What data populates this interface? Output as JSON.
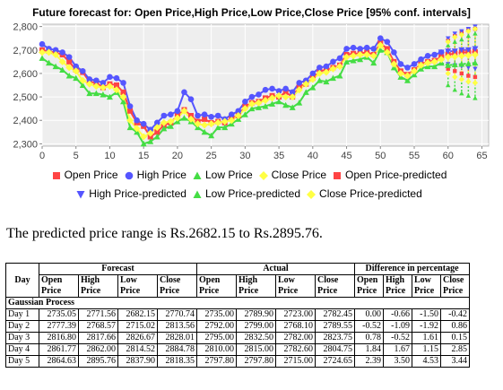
{
  "chart_data": {
    "type": "line",
    "title": "Future forecast for: Open Price,High Price,Low Price,Close Price [95% conf. intervals]",
    "xlim": [
      0,
      66
    ],
    "ylim": [
      2290,
      2810
    ],
    "xticks": [
      0,
      5,
      10,
      15,
      20,
      25,
      30,
      35,
      40,
      45,
      50,
      55,
      60,
      65
    ],
    "yticks": [
      2300,
      2400,
      2500,
      2600,
      2700,
      2800
    ],
    "ytick_labels": [
      "2,300",
      "2,400",
      "2,500",
      "2,600",
      "2,700",
      "2,800"
    ],
    "grid": true,
    "legend": "bottom",
    "series": [
      {
        "name": "Open Price",
        "color": "#ff4444",
        "marker": "square",
        "x": [
          0,
          1,
          2,
          3,
          4,
          5,
          6,
          7,
          8,
          9,
          10,
          11,
          12,
          13,
          14,
          15,
          16,
          17,
          18,
          19,
          20,
          21,
          22,
          23,
          24,
          25,
          26,
          27,
          28,
          29,
          30,
          31,
          32,
          33,
          34,
          35,
          36,
          37,
          38,
          39,
          40,
          41,
          42,
          43,
          44,
          45,
          46,
          47,
          48,
          49,
          50,
          51,
          52,
          53,
          54,
          55,
          56,
          57,
          58,
          59
        ],
        "y": [
          2700,
          2695,
          2688,
          2680,
          2650,
          2615,
          2605,
          2565,
          2560,
          2540,
          2555,
          2550,
          2520,
          2440,
          2390,
          2375,
          2330,
          2350,
          2380,
          2390,
          2420,
          2445,
          2420,
          2395,
          2405,
          2390,
          2395,
          2390,
          2410,
          2420,
          2460,
          2475,
          2480,
          2495,
          2505,
          2500,
          2520,
          2500,
          2545,
          2555,
          2580,
          2610,
          2615,
          2625,
          2635,
          2680,
          2685,
          2685,
          2690,
          2680,
          2730,
          2705,
          2650,
          2610,
          2595,
          2615,
          2640,
          2650,
          2655,
          2670
        ]
      },
      {
        "name": "High Price",
        "color": "#5555ff",
        "marker": "circle",
        "x": [
          0,
          1,
          2,
          3,
          4,
          5,
          6,
          7,
          8,
          9,
          10,
          11,
          12,
          13,
          14,
          15,
          16,
          17,
          18,
          19,
          20,
          21,
          22,
          23,
          24,
          25,
          26,
          27,
          28,
          29,
          30,
          31,
          32,
          33,
          34,
          35,
          36,
          37,
          38,
          39,
          40,
          41,
          42,
          43,
          44,
          45,
          46,
          47,
          48,
          49,
          50,
          51,
          52,
          53,
          54,
          55,
          56,
          57,
          58,
          59
        ],
        "y": [
          2725,
          2705,
          2700,
          2690,
          2670,
          2630,
          2610,
          2575,
          2570,
          2560,
          2585,
          2580,
          2560,
          2460,
          2400,
          2385,
          2360,
          2390,
          2420,
          2425,
          2440,
          2520,
          2490,
          2420,
          2425,
          2415,
          2420,
          2405,
          2425,
          2440,
          2480,
          2500,
          2510,
          2530,
          2535,
          2525,
          2535,
          2520,
          2560,
          2570,
          2600,
          2625,
          2630,
          2650,
          2665,
          2705,
          2710,
          2705,
          2710,
          2705,
          2750,
          2735,
          2690,
          2640,
          2625,
          2640,
          2660,
          2675,
          2680,
          2690
        ]
      },
      {
        "name": "Low Price",
        "color": "#44dd44",
        "marker": "triangle-up",
        "x": [
          0,
          1,
          2,
          3,
          4,
          5,
          6,
          7,
          8,
          9,
          10,
          11,
          12,
          13,
          14,
          15,
          16,
          17,
          18,
          19,
          20,
          21,
          22,
          23,
          24,
          25,
          26,
          27,
          28,
          29,
          30,
          31,
          32,
          33,
          34,
          35,
          36,
          37,
          38,
          39,
          40,
          41,
          42,
          43,
          44,
          45,
          46,
          47,
          48,
          49,
          50,
          51,
          52,
          53,
          54,
          55,
          56,
          57,
          58,
          59
        ],
        "y": [
          2665,
          2645,
          2630,
          2615,
          2590,
          2580,
          2550,
          2515,
          2515,
          2510,
          2500,
          2520,
          2480,
          2370,
          2350,
          2300,
          2310,
          2330,
          2365,
          2375,
          2395,
          2410,
          2395,
          2370,
          2350,
          2335,
          2370,
          2370,
          2385,
          2405,
          2425,
          2450,
          2455,
          2460,
          2470,
          2480,
          2465,
          2455,
          2475,
          2520,
          2540,
          2570,
          2565,
          2580,
          2590,
          2650,
          2655,
          2660,
          2670,
          2645,
          2700,
          2690,
          2625,
          2585,
          2570,
          2595,
          2620,
          2630,
          2630,
          2645
        ]
      },
      {
        "name": "Close Price",
        "color": "#ffff44",
        "marker": "diamond",
        "x": [
          0,
          1,
          2,
          3,
          4,
          5,
          6,
          7,
          8,
          9,
          10,
          11,
          12,
          13,
          14,
          15,
          16,
          17,
          18,
          19,
          20,
          21,
          22,
          23,
          24,
          25,
          26,
          27,
          28,
          29,
          30,
          31,
          32,
          33,
          34,
          35,
          36,
          37,
          38,
          39,
          40,
          41,
          42,
          43,
          44,
          45,
          46,
          47,
          48,
          49,
          50,
          51,
          52,
          53,
          54,
          55,
          56,
          57,
          58,
          59
        ],
        "y": [
          2690,
          2690,
          2680,
          2650,
          2625,
          2610,
          2570,
          2555,
          2545,
          2540,
          2545,
          2530,
          2500,
          2400,
          2365,
          2330,
          2345,
          2370,
          2390,
          2395,
          2410,
          2440,
          2405,
          2385,
          2380,
          2385,
          2390,
          2395,
          2400,
          2420,
          2450,
          2470,
          2475,
          2485,
          2495,
          2505,
          2500,
          2500,
          2530,
          2555,
          2575,
          2600,
          2605,
          2620,
          2630,
          2670,
          2675,
          2680,
          2680,
          2675,
          2720,
          2690,
          2640,
          2600,
          2590,
          2610,
          2635,
          2645,
          2650,
          2660
        ]
      },
      {
        "name": "Open Price-predicted",
        "color": "#ff4444",
        "marker": "square",
        "x": [
          59,
          60,
          61,
          62,
          63,
          64
        ],
        "y": [
          2670,
          2680,
          2685,
          2690,
          2690,
          2692
        ],
        "lower": [
          2670,
          2620,
          2610,
          2600,
          2590,
          2585
        ],
        "upper": [
          2670,
          2740,
          2760,
          2775,
          2785,
          2790
        ]
      },
      {
        "name": "High Price-predicted",
        "color": "#5555ff",
        "marker": "triangle-down",
        "x": [
          59,
          60,
          61,
          62,
          63,
          64
        ],
        "y": [
          2690,
          2695,
          2695,
          2700,
          2700,
          2705
        ],
        "lower": [
          2690,
          2640,
          2635,
          2630,
          2625,
          2620
        ],
        "upper": [
          2690,
          2750,
          2770,
          2780,
          2790,
          2800
        ]
      },
      {
        "name": "Low Price-predicted",
        "color": "#44dd44",
        "marker": "triangle-up",
        "x": [
          59,
          60,
          61,
          62,
          63,
          64
        ],
        "y": [
          2645,
          2635,
          2638,
          2640,
          2642,
          2645
        ],
        "lower": [
          2645,
          2550,
          2530,
          2515,
          2505,
          2495
        ],
        "upper": [
          2645,
          2720,
          2735,
          2745,
          2760,
          2770
        ]
      },
      {
        "name": "Close Price-predicted",
        "color": "#ffff44",
        "marker": "diamond",
        "x": [
          59,
          60,
          61,
          62,
          63,
          64
        ],
        "y": [
          2660,
          2670,
          2672,
          2675,
          2677,
          2680
        ],
        "lower": [
          2660,
          2600,
          2585,
          2575,
          2565,
          2560
        ],
        "upper": [
          2660,
          2735,
          2755,
          2765,
          2780,
          2790
        ]
      }
    ]
  },
  "legend": {
    "row1": [
      {
        "label": "Open Price",
        "color": "#ff4444",
        "marker": "square"
      },
      {
        "label": "High Price",
        "color": "#5555ff",
        "marker": "circle"
      },
      {
        "label": "Low Price",
        "color": "#44dd44",
        "marker": "triangle-up"
      },
      {
        "label": "Close Price",
        "color": "#ffff44",
        "marker": "diamond"
      },
      {
        "label": "Open Price-predicted",
        "color": "#ff4444",
        "marker": "square"
      }
    ],
    "row2": [
      {
        "label": "High Price-predicted",
        "color": "#5555ff",
        "marker": "triangle-down"
      },
      {
        "label": "Low Price-predicted",
        "color": "#44dd44",
        "marker": "triangle-up"
      },
      {
        "label": "Close Price-predicted",
        "color": "#ffff44",
        "marker": "diamond"
      }
    ]
  },
  "summary": {
    "range_text": "The predicted price range is Rs.2682.15 to Rs.2895.76."
  },
  "table": {
    "group_headers": {
      "day": "Day",
      "forecast": "Forecast",
      "actual": "Actual",
      "difference": "Difference in percentage"
    },
    "sub_headers": {
      "forecast": [
        "Open Price",
        "High Price",
        "Low Price",
        "Close Price"
      ],
      "actual": [
        "Open Price",
        "High Price",
        "Low Price",
        "Close Price"
      ],
      "difference": [
        "Open Price",
        "High Price",
        "Low Price",
        "Close Price"
      ]
    },
    "section_label": "Gaussian Process",
    "rows": [
      {
        "day": "Day 1",
        "forecast": [
          "2735.05",
          "2771.56",
          "2682.15",
          "2770.74"
        ],
        "actual": [
          "2735.00",
          "2789.90",
          "2723.00",
          "2782.45"
        ],
        "difference": [
          "0.00",
          "-0.66",
          "-1.50",
          "-0.42"
        ]
      },
      {
        "day": "Day 2",
        "forecast": [
          "2777.39",
          "2768.57",
          "2715.02",
          "2813.56"
        ],
        "actual": [
          "2792.00",
          "2799.00",
          "2768.10",
          "2789.55"
        ],
        "difference": [
          "-0.52",
          "-1.09",
          "-1.92",
          "0.86"
        ]
      },
      {
        "day": "Day 3",
        "forecast": [
          "2816.80",
          "2817.66",
          "2826.67",
          "2828.01"
        ],
        "actual": [
          "2795.00",
          "2832.50",
          "2782.00",
          "2823.75"
        ],
        "difference": [
          "0.78",
          "-0.52",
          "1.61",
          "0.15"
        ]
      },
      {
        "day": "Day 4",
        "forecast": [
          "2861.77",
          "2862.00",
          "2814.52",
          "2884.78"
        ],
        "actual": [
          "2810.00",
          "2815.00",
          "2782.60",
          "2804.75"
        ],
        "difference": [
          "1.84",
          "1.67",
          "1.15",
          "2.85"
        ]
      },
      {
        "day": "Day 5",
        "forecast": [
          "2864.63",
          "2895.76",
          "2837.90",
          "2818.35"
        ],
        "actual": [
          "2797.80",
          "2797.80",
          "2715.00",
          "2724.65"
        ],
        "difference": [
          "2.39",
          "3.50",
          "4.53",
          "3.44"
        ]
      }
    ]
  }
}
